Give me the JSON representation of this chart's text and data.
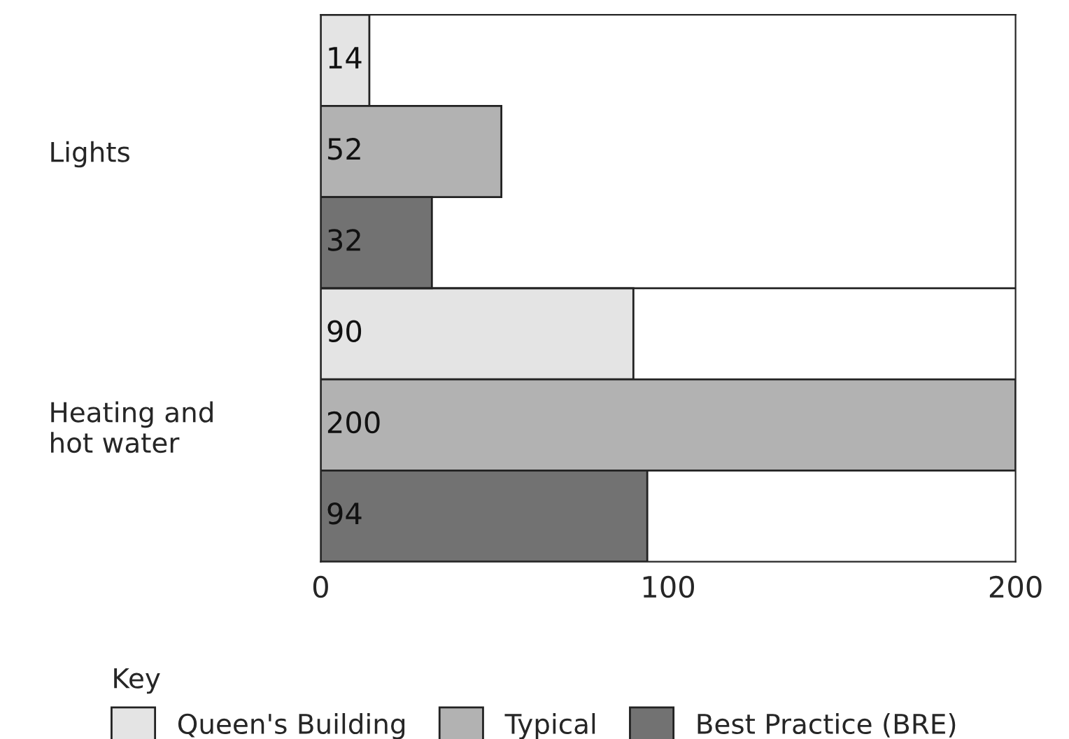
{
  "chart_data": {
    "type": "bar",
    "orientation": "horizontal",
    "categories": [
      "Lights",
      "Heating and\nhot water"
    ],
    "series": [
      {
        "name": "Queen's Building",
        "color": "#e4e4e4",
        "values": [
          14,
          90
        ]
      },
      {
        "name": "Typical",
        "color": "#b2b2b2",
        "values": [
          52,
          200
        ]
      },
      {
        "name": "Best Practice (BRE)",
        "color": "#727272",
        "values": [
          32,
          94
        ]
      }
    ],
    "xlim": [
      0,
      200
    ],
    "xticks": [
      0,
      100,
      200
    ],
    "data_labels": true,
    "grid": false,
    "legend": "bottom",
    "legend_title": "Key"
  }
}
